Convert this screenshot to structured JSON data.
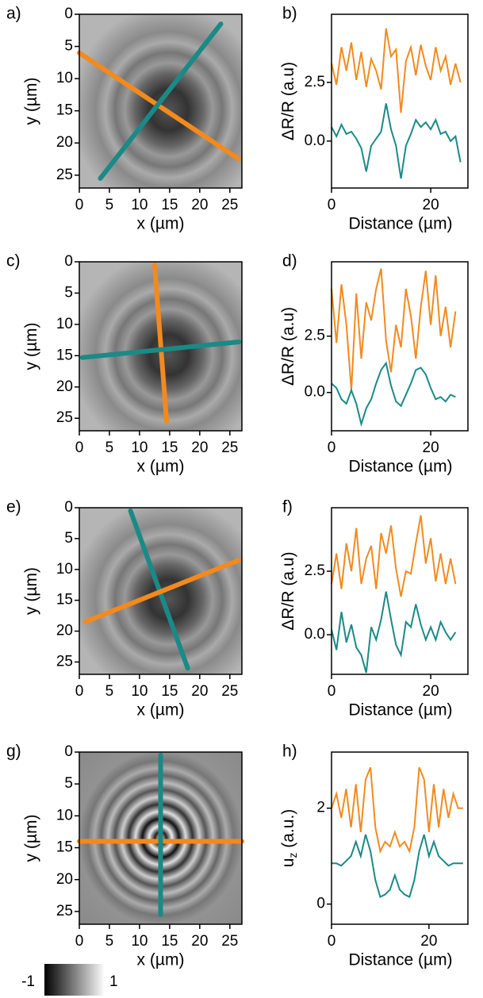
{
  "chart_data": [
    {
      "type": "image",
      "label": "a)",
      "xlabel": "x (µm)",
      "ylabel": "y (µm)",
      "xlim": [
        0,
        27
      ],
      "ylim": [
        27,
        0
      ],
      "xticks": [
        0,
        5,
        10,
        15,
        20,
        25
      ],
      "yticks": [
        0,
        5,
        10,
        15,
        20,
        25
      ],
      "series": [
        {
          "color": "#f28a1e",
          "x": [
            0,
            26.5
          ],
          "y": [
            6,
            22.5
          ]
        },
        {
          "color": "#1a8a86",
          "x": [
            3.5,
            23.5
          ],
          "y": [
            25.5,
            1.5
          ]
        }
      ]
    },
    {
      "type": "line",
      "label": "b)",
      "xlabel": "Distance (µm)",
      "ylabel": "ΔR/R (a.u)",
      "xlim": [
        0,
        27.5
      ],
      "ylim": [
        -2,
        5.4
      ],
      "xticks": [
        0,
        20
      ],
      "yticks": [
        {
          "value": 0,
          "label": "0.0"
        },
        2.5
      ],
      "x": [
        0,
        1,
        2,
        3,
        4,
        5,
        6,
        7,
        8,
        9,
        10,
        11,
        12,
        13,
        14,
        15,
        16,
        17,
        18,
        19,
        20,
        21,
        22,
        23,
        24,
        25,
        26
      ],
      "series": [
        {
          "color": "#f28a1e",
          "values": [
            3.3,
            2.4,
            4.0,
            3.0,
            4.2,
            2.6,
            3.8,
            2.3,
            3.5,
            3.0,
            2.2,
            4.8,
            3.6,
            3.9,
            1.2,
            3.4,
            4.0,
            2.8,
            4.1,
            3.2,
            2.6,
            4.0,
            3.0,
            3.6,
            2.4,
            3.3,
            2.5
          ]
        },
        {
          "color": "#1a8a86",
          "values": [
            0.6,
            0.2,
            0.7,
            0.3,
            0.4,
            0.1,
            -0.3,
            -1.3,
            -0.2,
            0.1,
            0.4,
            1.6,
            0.5,
            -0.2,
            -1.6,
            -0.2,
            0.3,
            0.9,
            0.6,
            0.8,
            0.5,
            0.9,
            0.3,
            0.4,
            0.0,
            0.2,
            -0.9
          ]
        }
      ]
    },
    {
      "type": "image",
      "label": "c)",
      "xlabel": "x (µm)",
      "ylabel": "y (µm)",
      "xlim": [
        0,
        27
      ],
      "ylim": [
        27,
        0
      ],
      "xticks": [
        0,
        5,
        10,
        15,
        20,
        25
      ],
      "yticks": [
        0,
        5,
        10,
        15,
        20,
        25
      ],
      "series": [
        {
          "color": "#f28a1e",
          "x": [
            12.5,
            14.5
          ],
          "y": [
            0.5,
            25.5
          ]
        },
        {
          "color": "#1a8a86",
          "x": [
            0.5,
            26.5
          ],
          "y": [
            15.3,
            12.8
          ]
        }
      ]
    },
    {
      "type": "line",
      "label": "d)",
      "xlabel": "Distance (µm)",
      "ylabel": "ΔR/R (a.u)",
      "xlim": [
        0,
        27.5
      ],
      "ylim": [
        -1.7,
        5.8
      ],
      "xticks": [
        0,
        20
      ],
      "yticks": [
        {
          "value": 0,
          "label": "0.0"
        },
        2.5
      ],
      "x": [
        0,
        1,
        2,
        3,
        4,
        5,
        6,
        7,
        8,
        9,
        10,
        11,
        12,
        13,
        14,
        15,
        16,
        17,
        18,
        19,
        20,
        21,
        22,
        23,
        24,
        25
      ],
      "series": [
        {
          "color": "#f28a1e",
          "values": [
            4.6,
            2.2,
            4.8,
            3.0,
            0.1,
            4.4,
            1.5,
            4.0,
            3.2,
            4.6,
            5.5,
            2.3,
            0.9,
            3.0,
            2.0,
            4.6,
            3.4,
            1.5,
            3.8,
            5.4,
            3.0,
            5.2,
            2.5,
            3.8,
            2.0,
            3.6
          ]
        },
        {
          "color": "#1a8a86",
          "values": [
            0.4,
            0.2,
            -0.3,
            -0.5,
            0.1,
            -0.5,
            -1.4,
            -0.7,
            -0.3,
            0.4,
            1.0,
            1.3,
            0.3,
            -0.4,
            -0.6,
            -0.1,
            0.4,
            1.0,
            1.1,
            0.8,
            0.2,
            -0.3,
            -0.2,
            -0.4,
            -0.1,
            -0.2
          ]
        }
      ]
    },
    {
      "type": "image",
      "label": "e)",
      "xlabel": "x (µm)",
      "ylabel": "y (µm)",
      "xlim": [
        0,
        27
      ],
      "ylim": [
        27,
        0
      ],
      "xticks": [
        0,
        5,
        10,
        15,
        20,
        25
      ],
      "yticks": [
        0,
        5,
        10,
        15,
        20,
        25
      ],
      "series": [
        {
          "color": "#1a8a86",
          "x": [
            8.5,
            18
          ],
          "y": [
            0.5,
            26
          ]
        },
        {
          "color": "#f28a1e",
          "x": [
            1,
            26.5
          ],
          "y": [
            18.5,
            8.5
          ]
        }
      ]
    },
    {
      "type": "line",
      "label": "f)",
      "xlabel": "Distance (µm)",
      "ylabel": "ΔR/R (a.u)",
      "xlim": [
        0,
        27.5
      ],
      "ylim": [
        -1.56,
        5.0
      ],
      "xticks": [
        0,
        20
      ],
      "yticks": [
        {
          "value": 0,
          "label": "0.0"
        },
        2.5
      ],
      "x": [
        0,
        1,
        2,
        3,
        4,
        5,
        6,
        7,
        8,
        9,
        10,
        11,
        12,
        13,
        14,
        15,
        16,
        17,
        18,
        19,
        20,
        21,
        22,
        23,
        24,
        25
      ],
      "series": [
        {
          "color": "#f28a1e",
          "values": [
            2.0,
            3.2,
            1.8,
            3.6,
            2.5,
            4.2,
            2.0,
            3.0,
            3.5,
            1.8,
            4.0,
            3.2,
            4.3,
            2.6,
            1.5,
            2.5,
            2.4,
            3.6,
            4.7,
            2.8,
            3.8,
            2.1,
            3.2,
            2.0,
            3.0,
            2.0
          ]
        },
        {
          "color": "#1a8a86",
          "values": [
            0.2,
            -0.6,
            0.9,
            -0.3,
            0.4,
            -0.5,
            -0.8,
            -1.5,
            0.3,
            -0.2,
            0.6,
            1.7,
            0.6,
            -0.4,
            -0.8,
            0.5,
            0.3,
            1.2,
            0.4,
            -0.2,
            0.3,
            -0.2,
            0.5,
            0.1,
            -0.2,
            0.1
          ]
        }
      ]
    },
    {
      "type": "image",
      "label": "g)",
      "xlabel": "x (µm)",
      "ylabel": "y (µm)",
      "xlim": [
        0,
        27
      ],
      "ylim": [
        27,
        0
      ],
      "xticks": [
        0,
        5,
        10,
        15,
        20,
        25
      ],
      "yticks": [
        0,
        5,
        10,
        15,
        20,
        25
      ],
      "colorbar_ticks": [
        -1,
        1
      ],
      "series": [
        {
          "color": "#f28a1e",
          "x": [
            0,
            27
          ],
          "y": [
            14,
            14
          ]
        },
        {
          "color": "#1a8a86",
          "x": [
            13.5,
            13.5
          ],
          "y": [
            0.5,
            25.5
          ]
        }
      ]
    },
    {
      "type": "line",
      "label": "h)",
      "xlabel": "Distance (µm)",
      "ylabel": "u",
      "ylabel_sub": "z",
      "ylabel_suffix": " (a.u.)",
      "xlim": [
        0,
        28
      ],
      "ylim": [
        -0.42,
        3.17
      ],
      "xticks": [
        0,
        20
      ],
      "yticks": [
        0,
        2
      ],
      "x": [
        0,
        1,
        2,
        3,
        4,
        5,
        6,
        7,
        8,
        9,
        10,
        11,
        12,
        13,
        14,
        15,
        16,
        17,
        18,
        19,
        20,
        21,
        22,
        23,
        24,
        25,
        26,
        27
      ],
      "series": [
        {
          "color": "#f28a1e",
          "values": [
            2.0,
            2.3,
            1.8,
            2.4,
            1.6,
            2.5,
            1.5,
            2.6,
            2.85,
            1.6,
            1.1,
            1.3,
            1.2,
            1.5,
            1.2,
            1.3,
            1.1,
            1.6,
            2.85,
            2.6,
            1.5,
            2.5,
            1.6,
            2.4,
            1.8,
            2.3,
            2.0,
            2.0
          ]
        },
        {
          "color": "#1a8a86",
          "values": [
            0.85,
            0.85,
            0.8,
            0.9,
            1.0,
            1.3,
            1.0,
            1.45,
            1.1,
            0.5,
            0.15,
            0.2,
            0.3,
            0.6,
            0.3,
            0.2,
            0.15,
            0.5,
            1.1,
            1.45,
            1.0,
            1.3,
            1.0,
            0.9,
            0.8,
            0.85,
            0.85,
            0.85
          ]
        }
      ]
    }
  ]
}
